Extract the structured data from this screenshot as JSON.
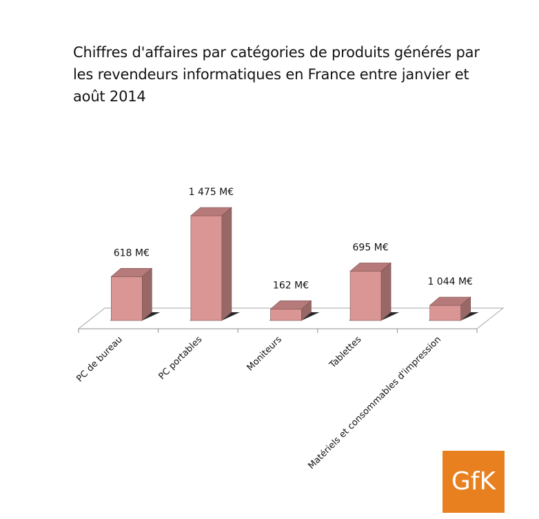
{
  "chart_data": {
    "type": "bar",
    "title": "Chiffres d'affaires par catégories de produits générés par les revendeurs informatiques en France entre janvier et août 2014",
    "categories": [
      "PC de bureau",
      "PC portables",
      "Moniteurs",
      "Tablettes",
      "Matériels et consommables d'impression"
    ],
    "values": [
      618,
      1475,
      162,
      695,
      1044
    ],
    "value_labels": [
      "618 M€",
      "1 475 M€",
      "162 M€",
      "695 M€",
      "1 044 M€"
    ],
    "unit": "M€",
    "xlabel": "",
    "ylabel": "",
    "grid": false,
    "legend": "none",
    "three_d": true,
    "bar_color": "#d99694"
  },
  "logo": {
    "text": "GfK",
    "color": "#e8801f"
  }
}
